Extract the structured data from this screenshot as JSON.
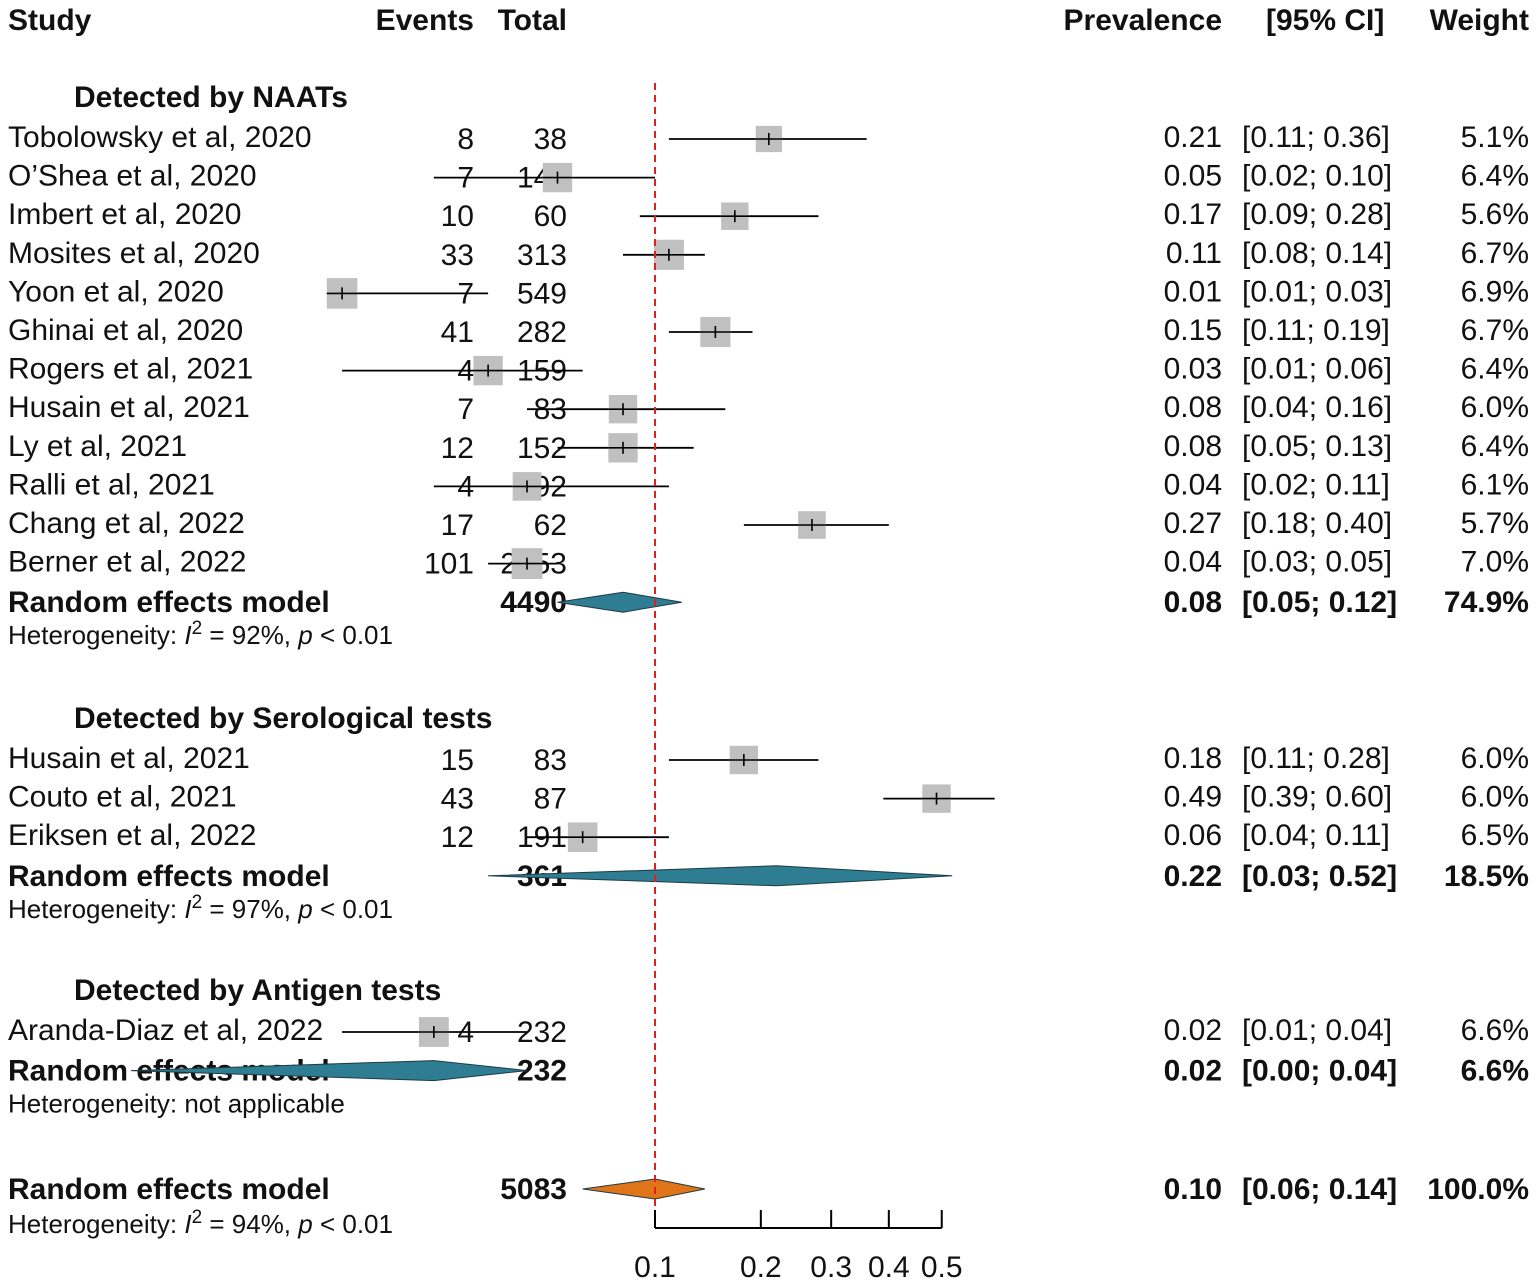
{
  "chart_data": {
    "type": "forest",
    "x_axis": {
      "ticks": [
        0.1,
        0.2,
        0.3,
        0.4,
        0.5
      ],
      "tick_labels": [
        "0.1",
        "0.2",
        "0.3",
        "0.4",
        "0.5"
      ],
      "transform": "logit"
    },
    "reference_line": 0.1,
    "colors": {
      "square": "#c0c0c0",
      "subgroup_diamond": "#2e7d92",
      "overall_diamond": "#e07418",
      "reference_line": "#e02020"
    },
    "headers": {
      "study": "Study",
      "events": "Events",
      "total": "Total",
      "prevalence": "Prevalence",
      "ci": "[95% CI]",
      "weight": "Weight"
    },
    "subgroups": [
      {
        "title": "Detected by NAATs",
        "studies": [
          {
            "name": "Tobolowsky et al, 2020",
            "events": "8",
            "total": "38",
            "est": 0.21,
            "lo": 0.11,
            "hi": 0.36,
            "est_text": "0.21",
            "ci_text": "[0.11; 0.36]",
            "weight_text": "5.1%",
            "weight": 5.1
          },
          {
            "name": "O’Shea et al, 2020",
            "events": "7",
            "total": "147",
            "est": 0.05,
            "lo": 0.02,
            "hi": 0.1,
            "est_text": "0.05",
            "ci_text": "[0.02; 0.10]",
            "weight_text": "6.4%",
            "weight": 6.4
          },
          {
            "name": "Imbert et al, 2020",
            "events": "10",
            "total": "60",
            "est": 0.17,
            "lo": 0.09,
            "hi": 0.28,
            "est_text": "0.17",
            "ci_text": "[0.09; 0.28]",
            "weight_text": "5.6%",
            "weight": 5.6
          },
          {
            "name": "Mosites et al, 2020",
            "events": "33",
            "total": "313",
            "est": 0.11,
            "lo": 0.08,
            "hi": 0.14,
            "est_text": "0.11",
            "ci_text": "[0.08; 0.14]",
            "weight_text": "6.7%",
            "weight": 6.7
          },
          {
            "name": "Yoon et al, 2020",
            "events": "7",
            "total": "549",
            "est": 0.01,
            "lo": 0.01,
            "hi": 0.03,
            "est_text": "0.01",
            "ci_text": "[0.01; 0.03]",
            "weight_text": "6.9%",
            "weight": 6.9
          },
          {
            "name": "Ghinai et al, 2020",
            "events": "41",
            "total": "282",
            "est": 0.15,
            "lo": 0.11,
            "hi": 0.19,
            "est_text": "0.15",
            "ci_text": "[0.11; 0.19]",
            "weight_text": "6.7%",
            "weight": 6.7
          },
          {
            "name": "Rogers et al, 2021",
            "events": "4",
            "total": "159",
            "est": 0.03,
            "lo": 0.01,
            "hi": 0.06,
            "est_text": "0.03",
            "ci_text": "[0.01; 0.06]",
            "weight_text": "6.4%",
            "weight": 6.4
          },
          {
            "name": "Husain et al, 2021",
            "events": "7",
            "total": "83",
            "est": 0.08,
            "lo": 0.04,
            "hi": 0.16,
            "est_text": "0.08",
            "ci_text": "[0.04; 0.16]",
            "weight_text": "6.0%",
            "weight": 6.0
          },
          {
            "name": "Ly et al, 2021",
            "events": "12",
            "total": "152",
            "est": 0.08,
            "lo": 0.05,
            "hi": 0.13,
            "est_text": "0.08",
            "ci_text": "[0.05; 0.13]",
            "weight_text": "6.4%",
            "weight": 6.4
          },
          {
            "name": "Ralli et al, 2021",
            "events": "4",
            "total": "92",
            "est": 0.04,
            "lo": 0.02,
            "hi": 0.11,
            "est_text": "0.04",
            "ci_text": "[0.02; 0.11]",
            "weight_text": "6.1%",
            "weight": 6.1
          },
          {
            "name": "Chang et al, 2022",
            "events": "17",
            "total": "62",
            "est": 0.27,
            "lo": 0.18,
            "hi": 0.4,
            "est_text": "0.27",
            "ci_text": "[0.18; 0.40]",
            "weight_text": "5.7%",
            "weight": 5.7
          },
          {
            "name": "Berner et al, 2022",
            "events": "101",
            "total": "2553",
            "est": 0.04,
            "lo": 0.03,
            "hi": 0.05,
            "est_text": "0.04",
            "ci_text": "[0.03; 0.05]",
            "weight_text": "7.0%",
            "weight": 7.0
          }
        ],
        "model": {
          "name": "Random effects model",
          "total": "4490",
          "est": 0.08,
          "lo": 0.05,
          "hi": 0.12,
          "est_text": "0.08",
          "ci_text": "[0.05; 0.12]",
          "weight_text": "74.9%"
        },
        "heterogeneity": {
          "prefix": "Heterogeneity: ",
          "i2_label": "I",
          "i2_sup": "2",
          "i2_value": " = 92%, ",
          "p_label": "p",
          "p_value": " < 0.01"
        }
      },
      {
        "title": "Detected by Serological tests",
        "studies": [
          {
            "name": "Husain et al, 2021",
            "events": "15",
            "total": "83",
            "est": 0.18,
            "lo": 0.11,
            "hi": 0.28,
            "est_text": "0.18",
            "ci_text": "[0.11; 0.28]",
            "weight_text": "6.0%",
            "weight": 6.0
          },
          {
            "name": "Couto et al, 2021",
            "events": "43",
            "total": "87",
            "est": 0.49,
            "lo": 0.39,
            "hi": 0.6,
            "est_text": "0.49",
            "ci_text": "[0.39; 0.60]",
            "weight_text": "6.0%",
            "weight": 6.0
          },
          {
            "name": "Eriksen et al, 2022",
            "events": "12",
            "total": "191",
            "est": 0.06,
            "lo": 0.04,
            "hi": 0.11,
            "est_text": "0.06",
            "ci_text": "[0.04; 0.11]",
            "weight_text": "6.5%",
            "weight": 6.5
          }
        ],
        "model": {
          "name": "Random effects model",
          "total": "361",
          "est": 0.22,
          "lo": 0.03,
          "hi": 0.52,
          "est_text": "0.22",
          "ci_text": "[0.03; 0.52]",
          "weight_text": "18.5%"
        },
        "heterogeneity": {
          "prefix": "Heterogeneity: ",
          "i2_label": "I",
          "i2_sup": "2",
          "i2_value": " = 97%, ",
          "p_label": "p",
          "p_value": " < 0.01"
        }
      },
      {
        "title": "Detected by Antigen tests",
        "studies": [
          {
            "name": "Aranda-Diaz et al, 2022",
            "events": "4",
            "total": "232",
            "est": 0.02,
            "lo": 0.01,
            "hi": 0.04,
            "est_text": "0.02",
            "ci_text": "[0.01; 0.04]",
            "weight_text": "6.6%",
            "weight": 6.6
          }
        ],
        "model": {
          "name": "Random effects model",
          "total": "232",
          "est": 0.02,
          "lo": 0.0,
          "hi": 0.04,
          "est_text": "0.02",
          "ci_text": "[0.00; 0.04]",
          "weight_text": "6.6%"
        },
        "heterogeneity": {
          "prefix": "Heterogeneity: ",
          "text": "not applicable"
        }
      }
    ],
    "overall": {
      "name": "Random effects model",
      "total": "5083",
      "est": 0.1,
      "lo": 0.06,
      "hi": 0.14,
      "est_text": "0.10",
      "ci_text": "[0.06; 0.14]",
      "weight_text": "100.0%",
      "heterogeneity": {
        "prefix": "Heterogeneity: ",
        "i2_label": "I",
        "i2_sup": "2",
        "i2_value": " = 94%, ",
        "p_label": "p",
        "p_value": " < 0.01"
      }
    }
  }
}
